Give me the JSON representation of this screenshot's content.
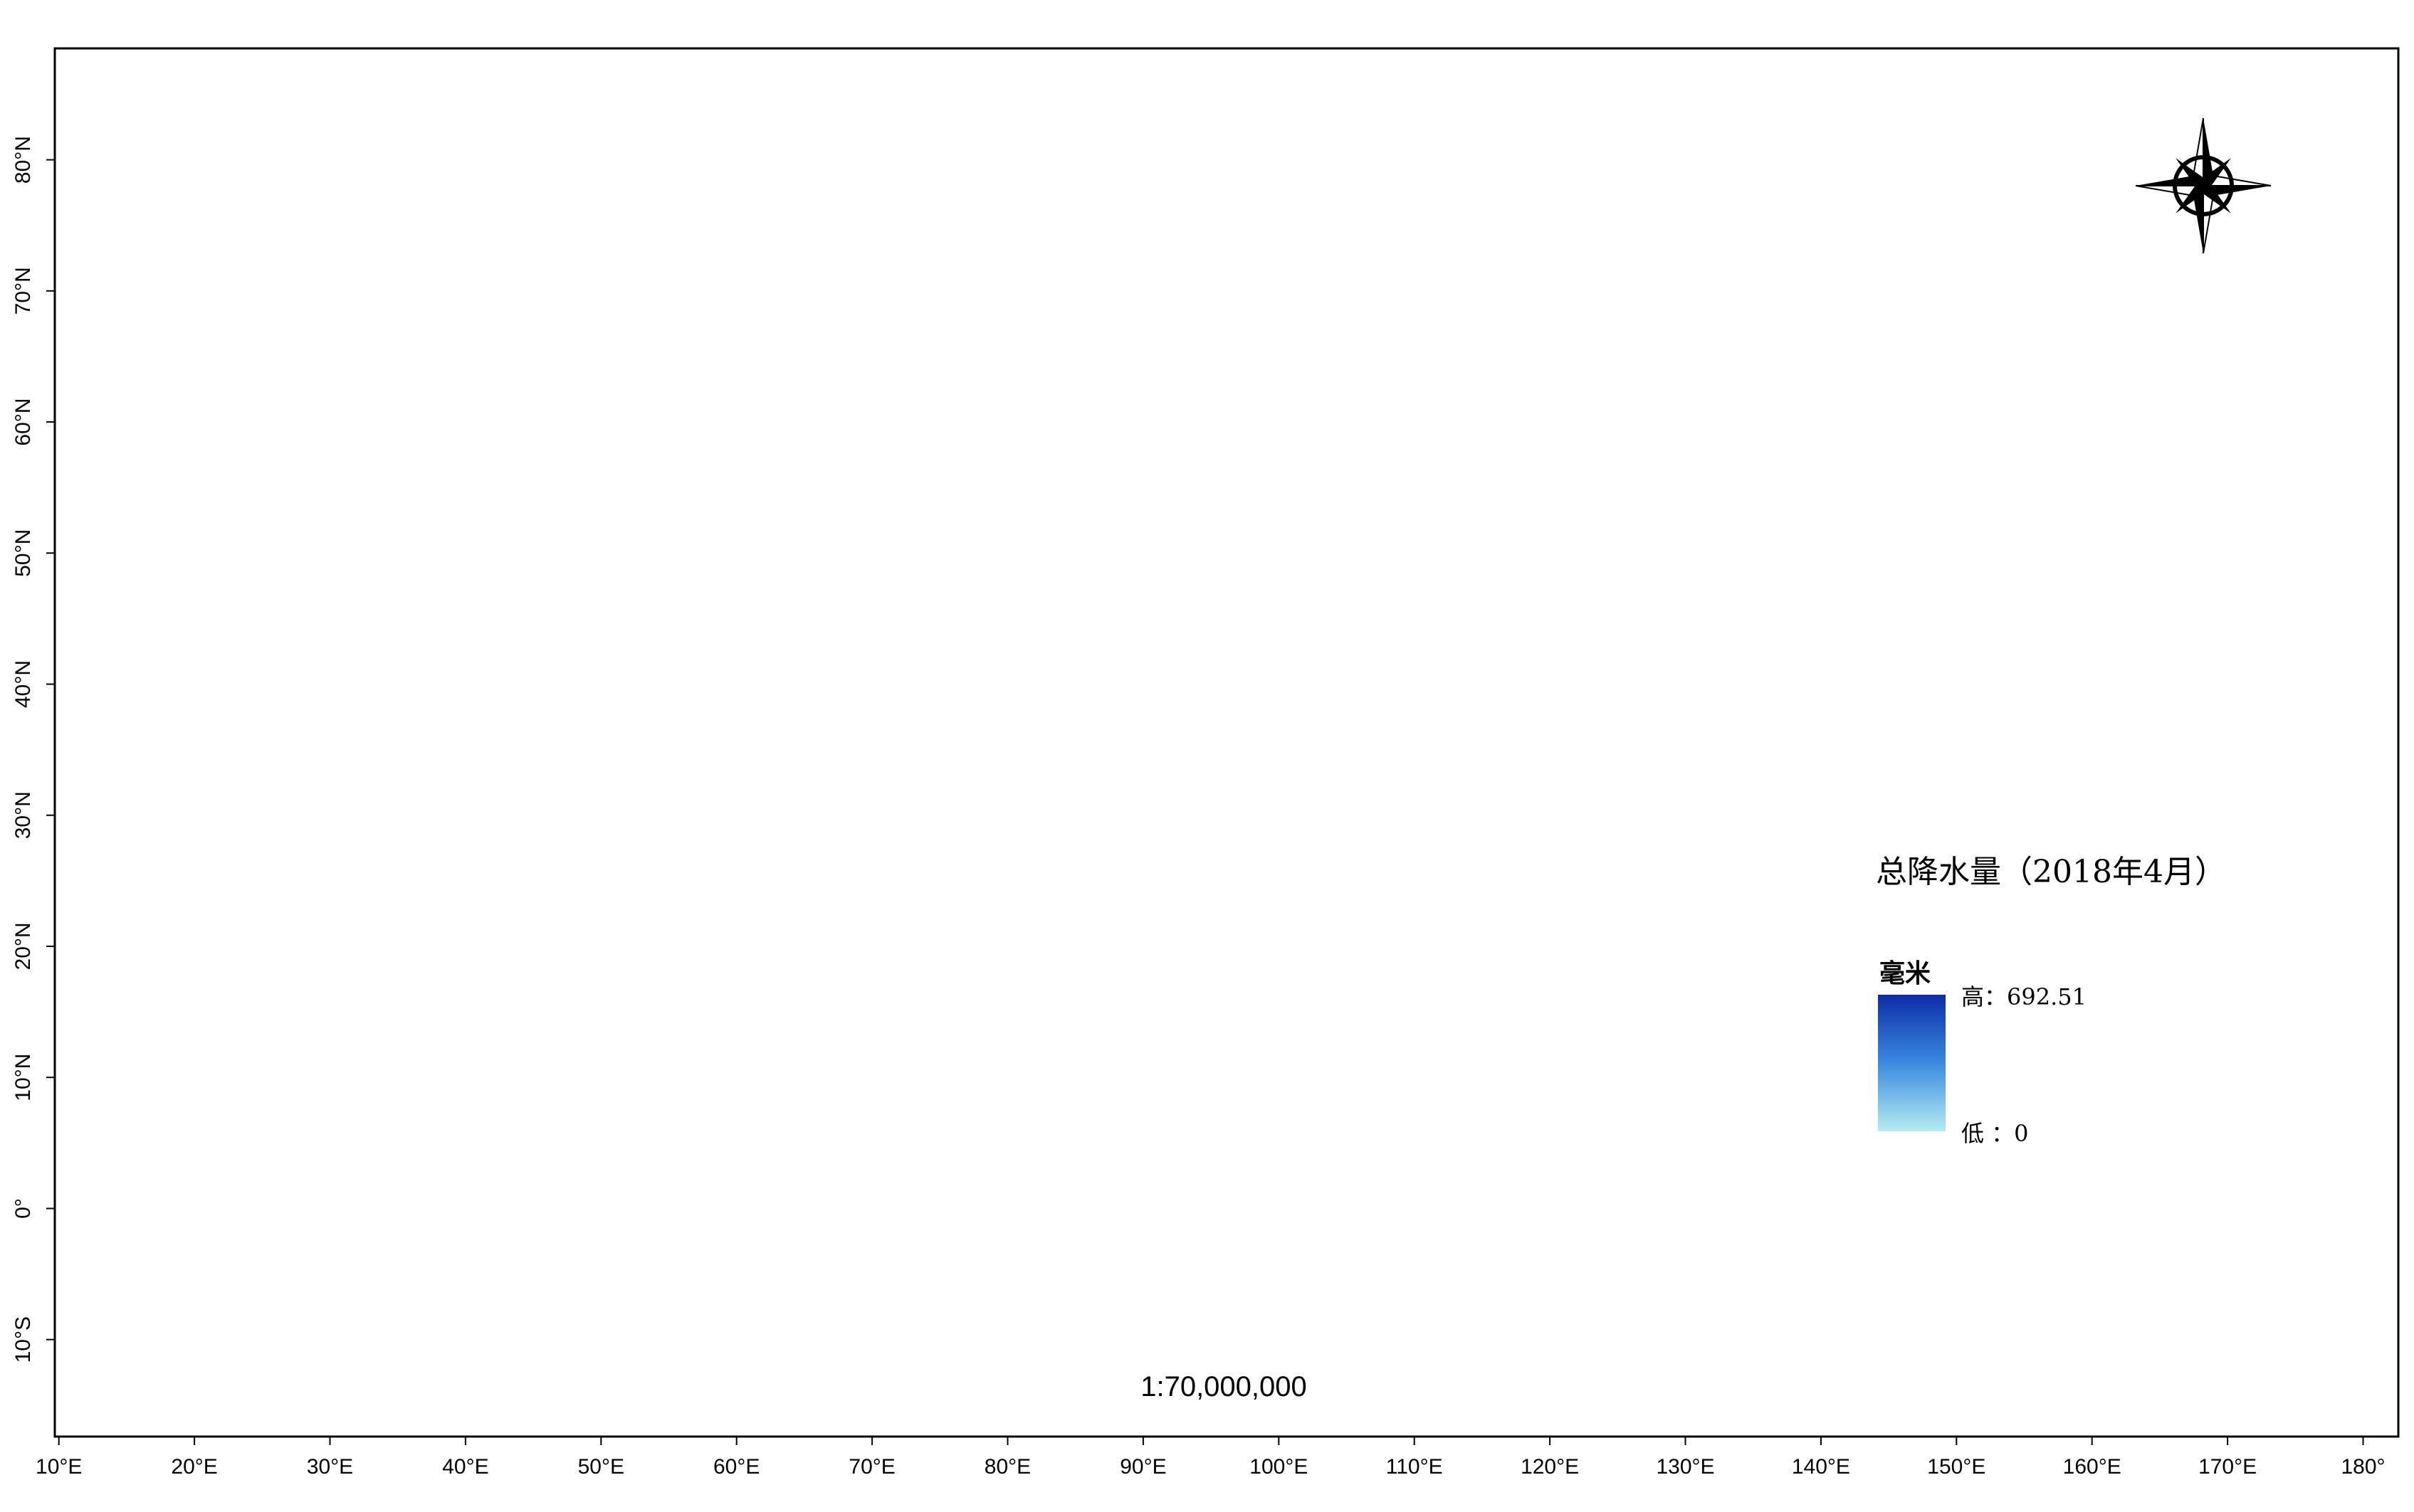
{
  "map": {
    "title": "总降水量（2018年4月）",
    "scale": "1:70,000,000",
    "legend": {
      "title": "毫米",
      "max": {
        "value": 692.51,
        "label": "高：692.51"
      },
      "min": {
        "value": 0,
        "label": "低 ：0"
      },
      "colors": [
        "#0d2ca8",
        "#3a8ae0",
        "#b6ecf2"
      ]
    },
    "xlim": [
      9.7,
      182.6
    ],
    "ylim": [
      -17.4,
      88.5
    ],
    "xticks": [
      {
        "value": 10,
        "label": "10°E"
      },
      {
        "value": 20,
        "label": "20°E"
      },
      {
        "value": 30,
        "label": "30°E"
      },
      {
        "value": 40,
        "label": "40°E"
      },
      {
        "value": 50,
        "label": "50°E"
      },
      {
        "value": 60,
        "label": "60°E"
      },
      {
        "value": 70,
        "label": "70°E"
      },
      {
        "value": 80,
        "label": "80°E"
      },
      {
        "value": 90,
        "label": "90°E"
      },
      {
        "value": 100,
        "label": "100°E"
      },
      {
        "value": 110,
        "label": "110°E"
      },
      {
        "value": 120,
        "label": "120°E"
      },
      {
        "value": 130,
        "label": "130°E"
      },
      {
        "value": 140,
        "label": "140°E"
      },
      {
        "value": 150,
        "label": "150°E"
      },
      {
        "value": 160,
        "label": "160°E"
      },
      {
        "value": 170,
        "label": "170°E"
      },
      {
        "value": 180,
        "label": "180°"
      }
    ],
    "yticks": [
      {
        "value": 80,
        "label": "80°N"
      },
      {
        "value": 70,
        "label": "70°N"
      },
      {
        "value": 60,
        "label": "60°N"
      },
      {
        "value": 50,
        "label": "50°N"
      },
      {
        "value": 40,
        "label": "40°N"
      },
      {
        "value": 30,
        "label": "30°N"
      },
      {
        "value": 20,
        "label": "20°N"
      },
      {
        "value": 10,
        "label": "10°N"
      },
      {
        "value": 0,
        "label": "0°"
      },
      {
        "value": -10,
        "label": "10°S"
      }
    ]
  }
}
